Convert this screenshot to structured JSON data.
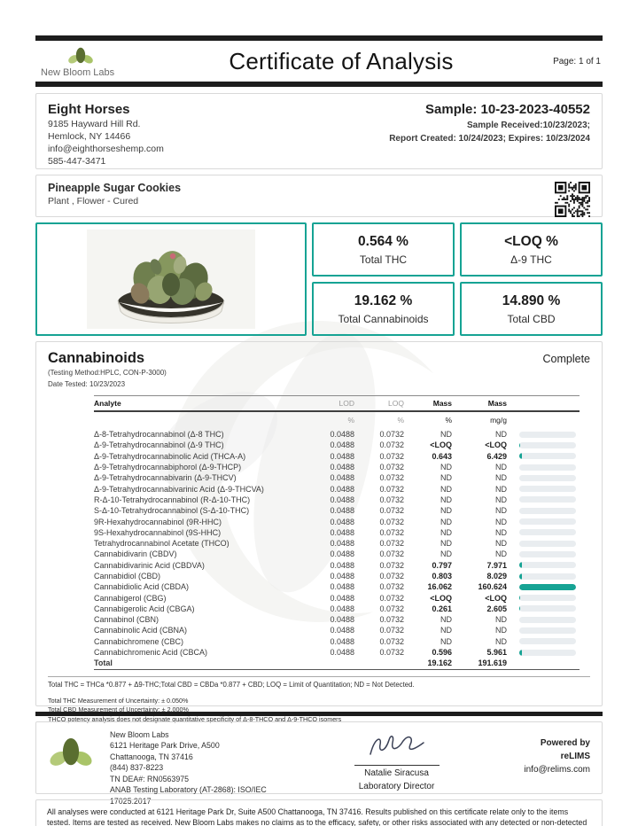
{
  "header": {
    "brand": "New Bloom Labs",
    "title": "Certificate of Analysis",
    "page": "Page: 1 of 1"
  },
  "client": {
    "name": "Eight Horses",
    "address1": "9185 Hayward Hill Rd.",
    "address2": "Hemlock, NY 14466",
    "email": "info@eighthorseshemp.com",
    "phone": "585-447-3471"
  },
  "sample": {
    "id": "Sample: 10-23-2023-40552",
    "received": "Sample Received:10/23/2023;",
    "report": "Report Created: 10/24/2023; Expires: 10/23/2024"
  },
  "product": {
    "name": "Pineapple Sugar Cookies",
    "type": "Plant , Flower - Cured"
  },
  "summary": {
    "boxes": [
      {
        "value": "0.564 %",
        "label": "Total THC"
      },
      {
        "value": "<LOQ %",
        "label": "Δ-9 THC"
      },
      {
        "value": "19.162 %",
        "label": "Total Cannabinoids"
      },
      {
        "value": "14.890 %",
        "label": "Total CBD"
      }
    ]
  },
  "cannabinoids": {
    "title": "Cannabinoids",
    "status": "Complete",
    "method": "(Testing Method:HPLC, CON-P-3000)",
    "date_tested": "Date Tested: 10/23/2023",
    "columns": {
      "analyte": "Analyte",
      "lod": "LOD",
      "loq": "LOQ",
      "mass1": "Mass",
      "mass2": "Mass"
    },
    "units": {
      "lod": "%",
      "loq": "%",
      "mass1": "%",
      "mass2": "mg/g"
    },
    "rows": [
      {
        "analyte": "Δ-8-Tetrahydrocannabinol (Δ-8 THC)",
        "lod": "0.0488",
        "loq": "0.0732",
        "mass_pct": "ND",
        "mass_mgg": "ND",
        "bar": 0
      },
      {
        "analyte": "Δ-9-Tetrahydrocannabinol (Δ-9 THC)",
        "lod": "0.0488",
        "loq": "0.0732",
        "mass_pct": "<LOQ",
        "mass_mgg": "<LOQ",
        "bar": 1.5
      },
      {
        "analyte": "Δ-9-Tetrahydrocannabinolic Acid (THCA-A)",
        "lod": "0.0488",
        "loq": "0.0732",
        "mass_pct": "0.643",
        "mass_mgg": "6.429",
        "bar": 4
      },
      {
        "analyte": "Δ-9-Tetrahydrocannabiphorol (Δ-9-THCP)",
        "lod": "0.0488",
        "loq": "0.0732",
        "mass_pct": "ND",
        "mass_mgg": "ND",
        "bar": 0
      },
      {
        "analyte": "Δ-9-Tetrahydrocannabivarin (Δ-9-THCV)",
        "lod": "0.0488",
        "loq": "0.0732",
        "mass_pct": "ND",
        "mass_mgg": "ND",
        "bar": 0
      },
      {
        "analyte": "Δ-9-Tetrahydrocannabivarinic Acid (Δ-9-THCVA)",
        "lod": "0.0488",
        "loq": "0.0732",
        "mass_pct": "ND",
        "mass_mgg": "ND",
        "bar": 0
      },
      {
        "analyte": "R-Δ-10-Tetrahydrocannabinol (R-Δ-10-THC)",
        "lod": "0.0488",
        "loq": "0.0732",
        "mass_pct": "ND",
        "mass_mgg": "ND",
        "bar": 0
      },
      {
        "analyte": "S-Δ-10-Tetrahydrocannabinol (S-Δ-10-THC)",
        "lod": "0.0488",
        "loq": "0.0732",
        "mass_pct": "ND",
        "mass_mgg": "ND",
        "bar": 0
      },
      {
        "analyte": "9R-Hexahydrocannabinol (9R-HHC)",
        "lod": "0.0488",
        "loq": "0.0732",
        "mass_pct": "ND",
        "mass_mgg": "ND",
        "bar": 0
      },
      {
        "analyte": "9S-Hexahydrocannabinol (9S-HHC)",
        "lod": "0.0488",
        "loq": "0.0732",
        "mass_pct": "ND",
        "mass_mgg": "ND",
        "bar": 0
      },
      {
        "analyte": "Tetrahydrocannabinol Acetate (THCO)",
        "lod": "0.0488",
        "loq": "0.0732",
        "mass_pct": "ND",
        "mass_mgg": "ND",
        "bar": 0
      },
      {
        "analyte": "Cannabidivarin (CBDV)",
        "lod": "0.0488",
        "loq": "0.0732",
        "mass_pct": "ND",
        "mass_mgg": "ND",
        "bar": 0
      },
      {
        "analyte": "Cannabidivarinic Acid (CBDVA)",
        "lod": "0.0488",
        "loq": "0.0732",
        "mass_pct": "0.797",
        "mass_mgg": "7.971",
        "bar": 5
      },
      {
        "analyte": "Cannabidiol (CBD)",
        "lod": "0.0488",
        "loq": "0.0732",
        "mass_pct": "0.803",
        "mass_mgg": "8.029",
        "bar": 5
      },
      {
        "analyte": "Cannabidiolic Acid (CBDA)",
        "lod": "0.0488",
        "loq": "0.0732",
        "mass_pct": "16.062",
        "mass_mgg": "160.624",
        "bar": 100
      },
      {
        "analyte": "Cannabigerol (CBG)",
        "lod": "0.0488",
        "loq": "0.0732",
        "mass_pct": "<LOQ",
        "mass_mgg": "<LOQ",
        "bar": 1.5
      },
      {
        "analyte": "Cannabigerolic Acid (CBGA)",
        "lod": "0.0488",
        "loq": "0.0732",
        "mass_pct": "0.261",
        "mass_mgg": "2.605",
        "bar": 2
      },
      {
        "analyte": "Cannabinol (CBN)",
        "lod": "0.0488",
        "loq": "0.0732",
        "mass_pct": "ND",
        "mass_mgg": "ND",
        "bar": 0
      },
      {
        "analyte": "Cannabinolic Acid (CBNA)",
        "lod": "0.0488",
        "loq": "0.0732",
        "mass_pct": "ND",
        "mass_mgg": "ND",
        "bar": 0
      },
      {
        "analyte": "Cannabichromene (CBC)",
        "lod": "0.0488",
        "loq": "0.0732",
        "mass_pct": "ND",
        "mass_mgg": "ND",
        "bar": 0
      },
      {
        "analyte": "Cannabichromenic Acid (CBCA)",
        "lod": "0.0488",
        "loq": "0.0732",
        "mass_pct": "0.596",
        "mass_mgg": "5.961",
        "bar": 4
      }
    ],
    "total": {
      "label": "Total",
      "mass_pct": "19.162",
      "mass_mgg": "191.619"
    },
    "footnote1": "Total THC = THCa *0.877 + Δ9-THC;Total CBD = CBDa *0.877 + CBD; LOQ = Limit of Quantitation; ND = Not Detected.",
    "footnotes": [
      "Total THC Measurement of Uncertainty: ± 0.050%",
      "Total CBD Measurement of Uncertainty: ± 2.000%",
      "THCO potency analysis does not designate quantitative specificity of Δ-8-THCO and Δ-9-THCO isomers"
    ]
  },
  "footer": {
    "lab_lines": [
      "New Bloom Labs",
      "6121 Heritage Park Drive, A500",
      "Chattanooga, TN 37416",
      "(844) 837-8223",
      "TN DEA#: RN0563975",
      "ANAB Testing Laboratory (AT-2868): ISO/IEC",
      "17025:2017"
    ],
    "signature": {
      "name": "Natalie Siracusa",
      "title": "Laboratory Director"
    },
    "powered": {
      "line1": "Powered by",
      "line2": "reLIMS",
      "line3": "info@relims.com"
    }
  },
  "disclaimer": "All analyses were conducted at 6121 Heritage Park Dr, Suite A500 Chattanooga, TN 37416. Results published on this certificate relate only to the items tested. Items are tested as received. New Bloom Labs makes no claims as to the efficacy, safety, or other risks associated with any detected or non-detected level of any compounds reported herein. This Certificate shall not be reproduced except in full, without the written approval of New Bloom Labs.",
  "colors": {
    "accent_teal": "#16a394",
    "logo_dark_green": "#5a6e30",
    "logo_light_green": "#a9c468"
  }
}
